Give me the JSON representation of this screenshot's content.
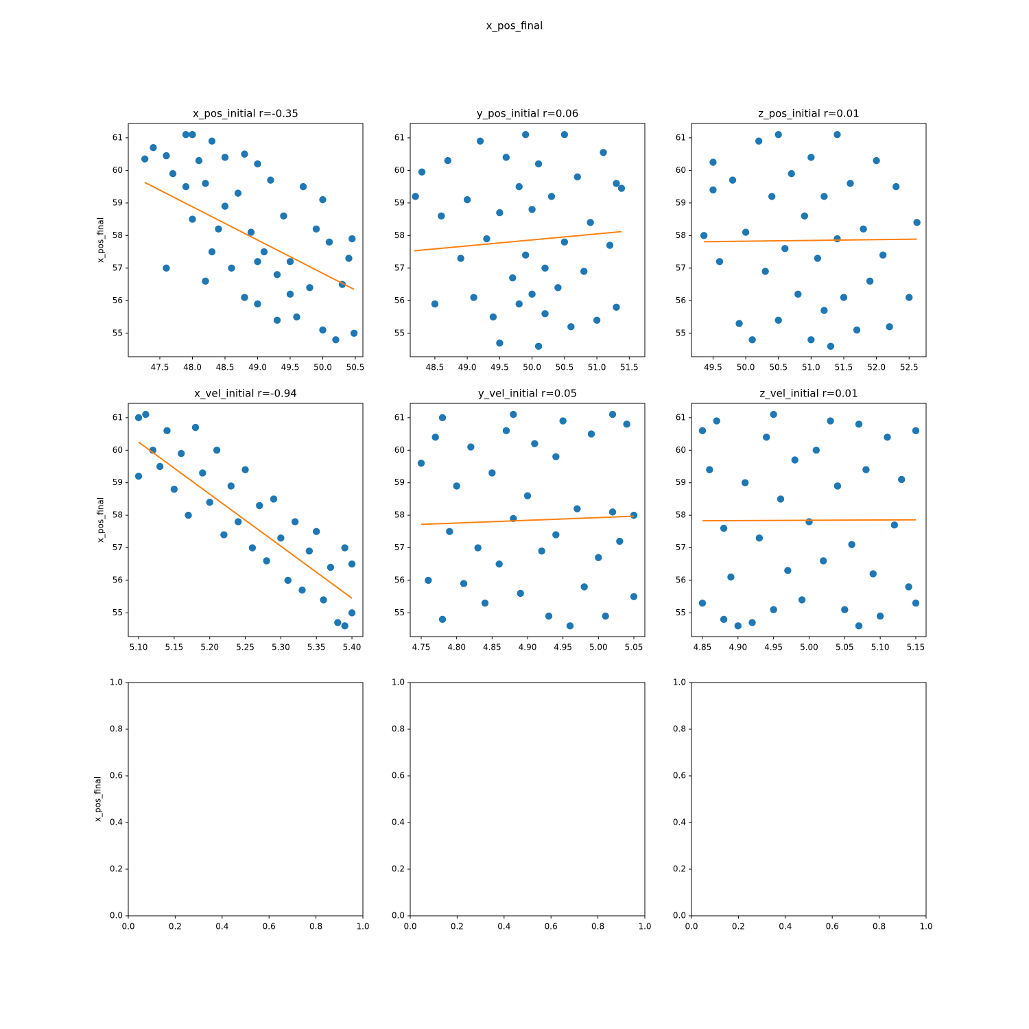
{
  "figure_title": "x_pos_final",
  "chart_data": [
    {
      "type": "scatter",
      "title": "x_pos_initial r=-0.35",
      "ylabel": "x_pos_final",
      "color": "#1f77b4",
      "x": [
        47.27,
        47.4,
        47.6,
        47.6,
        47.7,
        47.9,
        48.0,
        47.9,
        48.0,
        48.1,
        48.2,
        48.2,
        48.3,
        48.4,
        48.5,
        48.6,
        48.7,
        48.8,
        48.8,
        48.9,
        49.0,
        49.0,
        49.1,
        49.2,
        49.3,
        49.3,
        49.4,
        49.5,
        49.6,
        49.7,
        49.8,
        49.9,
        50.0,
        50.0,
        50.1,
        50.2,
        50.3,
        50.4,
        50.45,
        50.48,
        48.5,
        49.0,
        49.5,
        48.3
      ],
      "values": [
        60.35,
        60.7,
        60.45,
        57.0,
        59.9,
        61.1,
        61.1,
        59.5,
        58.5,
        60.3,
        59.6,
        56.6,
        60.9,
        58.2,
        60.4,
        57.0,
        59.3,
        60.5,
        56.1,
        58.1,
        60.2,
        55.9,
        57.5,
        59.7,
        56.8,
        55.4,
        58.6,
        57.2,
        55.5,
        59.5,
        56.4,
        58.2,
        55.1,
        59.1,
        57.8,
        54.8,
        56.5,
        57.3,
        57.9,
        55.0,
        58.9,
        57.2,
        56.2,
        57.5
      ],
      "fit": {
        "x": [
          47.27,
          50.48
        ],
        "values": [
          59.63,
          56.35
        ],
        "color": "#ff7f0e"
      },
      "xlim": [
        47.016,
        50.616
      ],
      "ylim": [
        54.28,
        61.44
      ],
      "xticks": [
        47.5,
        {
          "value": 48,
          "label": "48.0"
        },
        48.5,
        {
          "value": 49,
          "label": "49.0"
        },
        49.5,
        {
          "value": 50,
          "label": "50.0"
        },
        50.5
      ],
      "yticks": [
        55,
        56,
        57,
        58,
        59,
        60,
        61
      ]
    },
    {
      "type": "scatter",
      "title": "y_pos_initial r=0.06",
      "color": "#1f77b4",
      "x": [
        48.2,
        48.3,
        48.5,
        48.6,
        48.7,
        48.9,
        49.0,
        49.1,
        49.2,
        49.3,
        49.4,
        49.5,
        49.5,
        49.6,
        49.7,
        49.8,
        49.8,
        49.9,
        49.9,
        50.0,
        50.0,
        50.1,
        50.1,
        50.2,
        50.2,
        50.3,
        50.4,
        50.5,
        50.5,
        50.6,
        50.7,
        50.8,
        50.9,
        51.0,
        51.1,
        51.2,
        51.3,
        51.38,
        51.3
      ],
      "values": [
        59.2,
        59.95,
        55.9,
        58.6,
        60.3,
        57.3,
        59.1,
        56.1,
        60.9,
        57.9,
        55.5,
        58.7,
        54.7,
        60.4,
        56.7,
        59.5,
        55.9,
        61.1,
        57.4,
        58.8,
        56.2,
        54.6,
        60.2,
        57.0,
        55.6,
        59.2,
        56.4,
        61.1,
        57.8,
        55.2,
        59.8,
        56.9,
        58.4,
        55.4,
        60.55,
        57.7,
        59.6,
        59.45,
        55.8
      ],
      "fit": {
        "x": [
          48.18,
          51.38
        ],
        "values": [
          57.53,
          58.12
        ],
        "color": "#ff7f0e"
      },
      "xlim": [
        48.12,
        51.74
      ],
      "ylim": [
        54.28,
        61.44
      ],
      "xticks": [
        48.5,
        {
          "value": 49,
          "label": "49.0"
        },
        49.5,
        {
          "value": 50,
          "label": "50.0"
        },
        50.5,
        {
          "value": 51,
          "label": "51.0"
        },
        51.5
      ],
      "yticks": [
        55,
        56,
        57,
        58,
        59,
        60,
        61
      ]
    },
    {
      "type": "scatter",
      "title": "z_pos_initial r=0.01",
      "color": "#1f77b4",
      "x": [
        49.36,
        49.5,
        49.5,
        49.6,
        49.8,
        49.9,
        50.0,
        50.1,
        50.2,
        50.3,
        50.4,
        50.5,
        50.5,
        50.6,
        50.7,
        50.8,
        50.9,
        51.0,
        51.0,
        51.1,
        51.2,
        51.2,
        51.3,
        51.4,
        51.4,
        51.5,
        51.6,
        51.7,
        51.8,
        51.9,
        52.0,
        52.1,
        52.2,
        52.3,
        52.5,
        52.62
      ],
      "values": [
        58.0,
        60.25,
        59.4,
        57.2,
        59.7,
        55.3,
        58.1,
        54.8,
        60.9,
        56.9,
        59.2,
        55.4,
        61.1,
        57.6,
        59.9,
        56.2,
        58.6,
        54.8,
        60.4,
        57.3,
        59.2,
        55.7,
        54.6,
        61.1,
        57.9,
        56.1,
        59.6,
        55.1,
        58.2,
        56.6,
        60.3,
        57.4,
        55.2,
        59.5,
        56.1,
        58.4
      ],
      "fit": {
        "x": [
          49.36,
          52.62
        ],
        "values": [
          57.81,
          57.89
        ],
        "color": "#ff7f0e"
      },
      "xlim": [
        49.17,
        52.76
      ],
      "ylim": [
        54.28,
        61.44
      ],
      "xticks": [
        49.5,
        {
          "value": 50,
          "label": "50.0"
        },
        50.5,
        {
          "value": 51,
          "label": "51.0"
        },
        51.5,
        {
          "value": 52,
          "label": "52.0"
        },
        52.5
      ],
      "yticks": [
        55,
        56,
        57,
        58,
        59,
        60,
        61
      ]
    },
    {
      "type": "scatter",
      "title": "x_vel_initial r=-0.94",
      "ylabel": "x_pos_final",
      "color": "#1f77b4",
      "x": [
        5.1,
        5.1,
        5.11,
        5.12,
        5.13,
        5.14,
        5.15,
        5.16,
        5.17,
        5.18,
        5.19,
        5.2,
        5.21,
        5.22,
        5.23,
        5.24,
        5.25,
        5.26,
        5.27,
        5.28,
        5.29,
        5.3,
        5.31,
        5.32,
        5.33,
        5.34,
        5.35,
        5.36,
        5.37,
        5.38,
        5.39,
        5.4,
        5.4,
        5.39
      ],
      "values": [
        61.0,
        59.2,
        61.1,
        60.0,
        59.5,
        60.6,
        58.8,
        59.9,
        58.0,
        60.7,
        59.3,
        58.4,
        60.0,
        57.4,
        58.9,
        57.8,
        59.4,
        57.0,
        58.3,
        56.6,
        58.5,
        57.3,
        56.0,
        57.8,
        55.7,
        56.9,
        57.5,
        55.4,
        56.4,
        54.7,
        57.0,
        56.5,
        55.0,
        54.6
      ],
      "fit": {
        "x": [
          5.1,
          5.4
        ],
        "values": [
          60.25,
          55.45
        ],
        "color": "#ff7f0e"
      },
      "xlim": [
        5.0855,
        5.4154
      ],
      "ylim": [
        54.27,
        61.44
      ],
      "xticks": [
        {
          "value": 5.1,
          "label": "5.10"
        },
        5.15,
        {
          "value": 5.2,
          "label": "5.20"
        },
        5.25,
        {
          "value": 5.3,
          "label": "5.30"
        },
        5.35,
        {
          "value": 5.4,
          "label": "5.40"
        }
      ],
      "yticks": [
        55,
        56,
        57,
        58,
        59,
        60,
        61
      ]
    },
    {
      "type": "scatter",
      "title": "y_vel_initial r=0.05",
      "color": "#1f77b4",
      "x": [
        4.75,
        4.76,
        4.77,
        4.78,
        4.78,
        4.79,
        4.8,
        4.81,
        4.82,
        4.83,
        4.84,
        4.85,
        4.86,
        4.87,
        4.88,
        4.88,
        4.89,
        4.9,
        4.91,
        4.92,
        4.93,
        4.94,
        4.94,
        4.95,
        4.96,
        4.97,
        4.98,
        4.99,
        5.0,
        5.01,
        5.02,
        5.02,
        5.03,
        5.04,
        5.05,
        5.05
      ],
      "values": [
        59.6,
        56.0,
        60.4,
        54.8,
        61.0,
        57.5,
        58.9,
        55.9,
        60.1,
        57.0,
        55.3,
        59.3,
        56.5,
        60.6,
        61.1,
        57.9,
        55.6,
        58.6,
        60.2,
        56.9,
        54.9,
        59.8,
        57.4,
        60.9,
        54.6,
        58.2,
        55.8,
        60.5,
        56.7,
        54.9,
        61.1,
        58.1,
        57.2,
        60.8,
        55.5,
        58.0
      ],
      "fit": {
        "x": [
          4.75,
          5.05
        ],
        "values": [
          57.72,
          57.97
        ],
        "color": "#ff7f0e"
      },
      "xlim": [
        4.7345,
        5.0655
      ],
      "ylim": [
        54.27,
        61.44
      ],
      "xticks": [
        4.75,
        {
          "value": 4.8,
          "label": "4.80"
        },
        4.85,
        {
          "value": 4.9,
          "label": "4.90"
        },
        4.95,
        {
          "value": 5,
          "label": "5.00"
        },
        5.05
      ],
      "yticks": [
        55,
        56,
        57,
        58,
        59,
        60,
        61
      ]
    },
    {
      "type": "scatter",
      "title": "z_vel_initial r=0.01",
      "color": "#1f77b4",
      "x": [
        4.85,
        4.85,
        4.86,
        4.87,
        4.88,
        4.88,
        4.89,
        4.9,
        4.91,
        4.92,
        4.93,
        4.94,
        4.95,
        4.95,
        4.96,
        4.97,
        4.98,
        4.99,
        5.0,
        5.01,
        5.02,
        5.03,
        5.04,
        5.05,
        5.06,
        5.07,
        5.07,
        5.08,
        5.09,
        5.1,
        5.11,
        5.12,
        5.13,
        5.14,
        5.15,
        5.15
      ],
      "values": [
        60.6,
        55.3,
        59.4,
        60.9,
        54.8,
        57.6,
        56.1,
        54.6,
        59.0,
        54.7,
        57.3,
        60.4,
        61.1,
        55.1,
        58.5,
        56.3,
        59.7,
        55.4,
        57.8,
        60.0,
        56.6,
        60.9,
        58.9,
        55.1,
        57.1,
        60.8,
        54.6,
        59.4,
        56.2,
        54.9,
        60.4,
        57.7,
        59.1,
        55.8,
        60.6,
        55.3
      ],
      "fit": {
        "x": [
          4.85,
          5.15
        ],
        "values": [
          57.83,
          57.86
        ],
        "color": "#ff7f0e"
      },
      "xlim": [
        4.8346,
        5.1645
      ],
      "ylim": [
        54.27,
        61.44
      ],
      "xticks": [
        4.85,
        {
          "value": 4.9,
          "label": "4.90"
        },
        4.95,
        {
          "value": 5,
          "label": "5.00"
        },
        5.05,
        {
          "value": 5.1,
          "label": "5.10"
        },
        5.15
      ],
      "yticks": [
        55,
        56,
        57,
        58,
        59,
        60,
        61
      ]
    },
    {
      "type": "scatter",
      "ylabel": "x_pos_final",
      "xlim": [
        0,
        1
      ],
      "ylim": [
        0,
        1
      ],
      "xticks": [
        {
          "value": 0,
          "label": "0.0"
        },
        0.2,
        0.4,
        0.6,
        0.8,
        {
          "value": 1,
          "label": "1.0"
        }
      ],
      "yticks": [
        {
          "value": 0,
          "label": "0.0"
        },
        0.2,
        0.4,
        0.6,
        0.8,
        {
          "value": 1,
          "label": "1.0"
        }
      ]
    },
    {
      "type": "scatter",
      "xlim": [
        0,
        1
      ],
      "ylim": [
        0,
        1
      ],
      "xticks": [
        {
          "value": 0,
          "label": "0.0"
        },
        0.2,
        0.4,
        0.6,
        0.8,
        {
          "value": 1,
          "label": "1.0"
        }
      ],
      "yticks": [
        {
          "value": 0,
          "label": "0.0"
        },
        0.2,
        0.4,
        0.6,
        0.8,
        {
          "value": 1,
          "label": "1.0"
        }
      ]
    },
    {
      "type": "scatter",
      "xlim": [
        0,
        1
      ],
      "ylim": [
        0,
        1
      ],
      "xticks": [
        {
          "value": 0,
          "label": "0.0"
        },
        0.2,
        0.4,
        0.6,
        0.8,
        {
          "value": 1,
          "label": "1.0"
        }
      ],
      "yticks": [
        {
          "value": 0,
          "label": "0.0"
        },
        0.2,
        0.4,
        0.6,
        0.8,
        {
          "value": 1,
          "label": "1.0"
        }
      ]
    }
  ]
}
